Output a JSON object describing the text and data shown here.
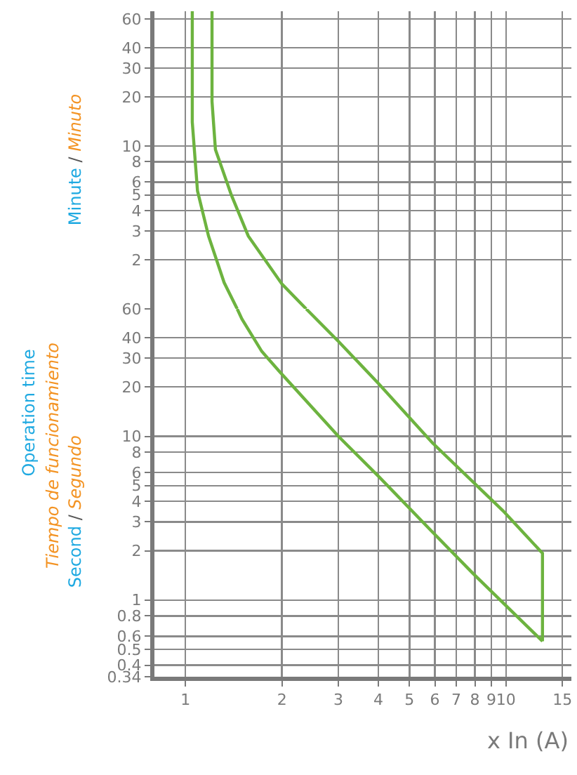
{
  "chart_data": [
    {
      "type": "line",
      "annotations": [
        "Minute / Minuto"
      ],
      "log": "xy",
      "grid": true,
      "tick_labels": "y",
      "line_style": "solid",
      "xlim": [
        0.8,
        16
      ],
      "xticks": [
        1,
        2,
        3,
        4,
        5,
        6,
        7,
        8,
        9,
        10,
        15
      ],
      "ylim": [
        1,
        67
      ],
      "yticks": [
        2,
        3,
        4,
        5,
        6,
        8,
        10,
        20,
        30,
        40,
        60
      ],
      "series": [
        {
          "color": "#6db33f",
          "x": [
            1.05,
            1.05,
            1.09,
            1.18,
            1.32,
            1.45
          ],
          "values": [
            67,
            14,
            5.3,
            2.8,
            1.45,
            1
          ]
        },
        {
          "color": "#6db33f",
          "x": [
            1.21,
            1.21,
            1.24,
            1.39,
            1.57,
            2,
            2.38
          ],
          "values": [
            67,
            18.7,
            9.5,
            5,
            2.8,
            1.42,
            1
          ]
        }
      ]
    },
    {
      "type": "line",
      "xlabel": "x In (A)",
      "ylabel": "Operation time",
      "annotations": [
        "Tiempo de funcionamiento",
        "Second / Segundo"
      ],
      "log": "xy",
      "grid": true,
      "line_style": "solid",
      "xlim": [
        0.8,
        16
      ],
      "xticks": [
        1,
        2,
        3,
        4,
        5,
        6,
        7,
        8,
        9,
        10,
        15
      ],
      "ylim": [
        0.34,
        60
      ],
      "yticks": [
        0.34,
        0.4,
        0.5,
        0.6,
        0.8,
        1,
        2,
        3,
        4,
        5,
        6,
        8,
        10,
        20,
        30,
        40,
        60
      ],
      "series": [
        {
          "color": "#6db33f",
          "x": [
            1.45,
            1.5,
            1.73,
            1.96,
            3,
            4,
            5.9,
            7.9,
            13
          ],
          "values": [
            60,
            52,
            33,
            25,
            10,
            5.7,
            2.6,
            1.45,
            0.56
          ]
        },
        {
          "color": "#6db33f",
          "x": [
            2.38,
            3,
            4,
            5.9,
            9.8,
            13,
            13
          ],
          "values": [
            60,
            38,
            21,
            9.1,
            3.5,
            1.93,
            0.56
          ]
        }
      ]
    }
  ]
}
